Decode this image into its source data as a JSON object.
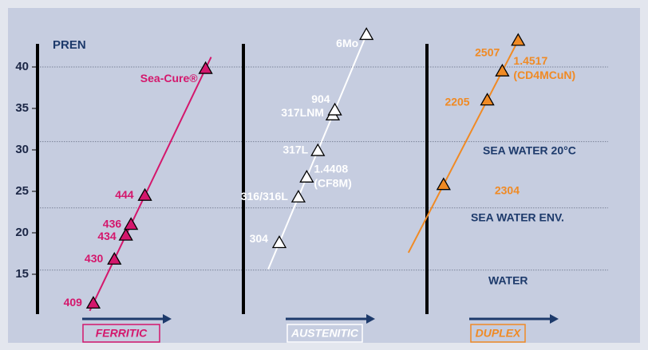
{
  "chart_data": {
    "type": "scatter",
    "y_label": "PREN",
    "ylim": [
      10,
      44
    ],
    "yticks": [
      15,
      20,
      25,
      30,
      35,
      40
    ],
    "reference_lines": [
      {
        "value": 40
      },
      {
        "value": 31,
        "label": "SEA WATER 20°C"
      },
      {
        "value": 23,
        "label": "SEA WATER ENV."
      },
      {
        "value": 15.5,
        "label": "WATER"
      }
    ],
    "series": [
      {
        "name": "FERRITIC",
        "color": "#d4176c",
        "labels": [
          "409",
          "430",
          "434",
          "436",
          "444",
          "Sea-Cure®"
        ],
        "values": [
          11.5,
          16.8,
          19.7,
          21,
          24.5,
          39.8
        ]
      },
      {
        "name": "AUSTENITIC",
        "color": "#ffffff",
        "labels": [
          "304",
          "316/316L",
          [
            "1.4408",
            "(CF8M)"
          ],
          "317L",
          "317LNM",
          "904",
          "6Mo"
        ],
        "values": [
          18.8,
          24.3,
          26.7,
          29.9,
          34.2,
          34.8,
          43.9
        ]
      },
      {
        "name": "DUPLEX",
        "color": "#f08a24",
        "labels": [
          "2304",
          "2205",
          [
            "1.4517",
            "(CD4MCuN)"
          ],
          "2507"
        ],
        "values": [
          25.8,
          36,
          39.5,
          43.2
        ]
      }
    ]
  }
}
